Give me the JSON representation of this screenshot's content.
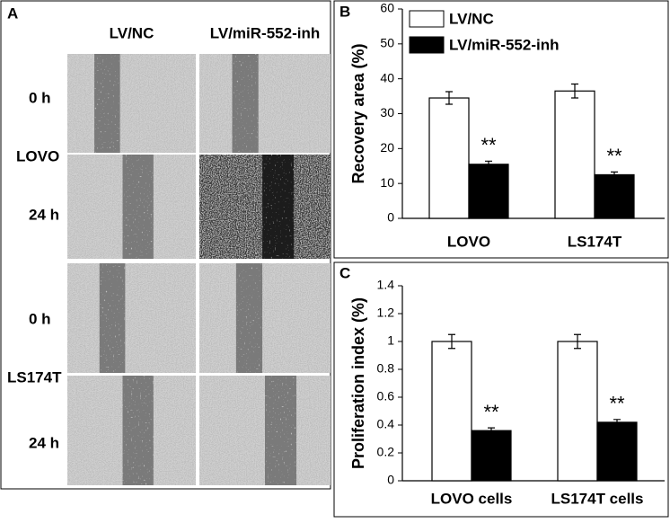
{
  "panel_a": {
    "label": "A",
    "columns": [
      "LV/NC",
      "LV/miR-552-inh"
    ],
    "rows": [
      "0 h",
      "24 h",
      "0 h",
      "24 h"
    ],
    "groups": [
      "LOVO",
      "LS174T"
    ]
  },
  "chart_data": [
    {
      "type": "bar",
      "panel": "B",
      "ylabel": "Recovery area (%)",
      "categories": [
        "LOVO",
        "LS174T"
      ],
      "series": [
        {
          "name": "LV/NC",
          "color": "#ffffff",
          "values": [
            34.5,
            36.5
          ],
          "error": [
            1.8,
            2
          ]
        },
        {
          "name": "LV/miR-552-inh",
          "color": "#000000",
          "values": [
            15.5,
            12.5
          ],
          "error": [
            0.9,
            0.8
          ]
        }
      ],
      "annotations": [
        "**",
        "**"
      ],
      "ylim": [
        0,
        60
      ],
      "yticks": [
        0,
        10,
        20,
        30,
        40,
        50,
        60
      ],
      "legend": "upper-left"
    },
    {
      "type": "bar",
      "panel": "C",
      "ylabel": "Proliferation  index (%)",
      "categories": [
        "LOVO cells",
        "LS174T cells"
      ],
      "series": [
        {
          "color": "#ffffff",
          "values": [
            1,
            1
          ],
          "error": [
            0.05,
            0.05
          ]
        },
        {
          "color": "#000000",
          "values": [
            0.36,
            0.42
          ],
          "error": [
            0.02,
            0.02
          ]
        }
      ],
      "annotations": [
        "**",
        "**"
      ],
      "ylim": [
        0,
        1.4
      ],
      "yticks": [
        0,
        0.2,
        0.4,
        0.6,
        0.8,
        1,
        1.2,
        1.4
      ]
    }
  ]
}
